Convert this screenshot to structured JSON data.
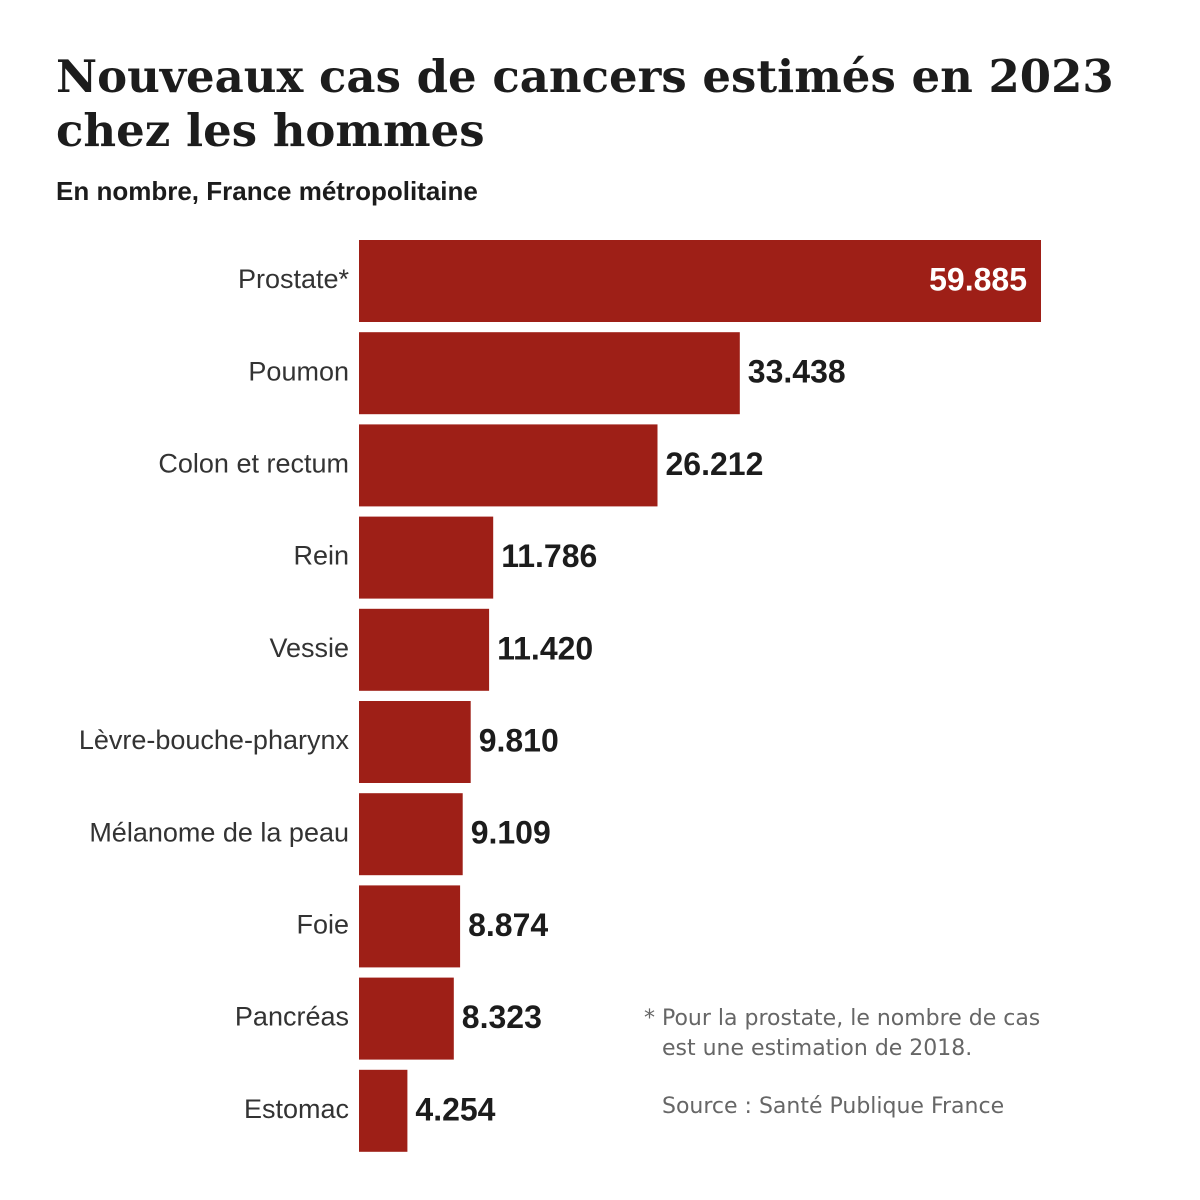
{
  "title_line1": "Nouveaux cas de cancers estimés en 2023",
  "title_line2": "chez les hommes",
  "subtitle": "En nombre, France métropolitaine",
  "note_line1": "* Pour la prostate, le nombre de cas",
  "note_line2": "est une estimation de 2018.",
  "source": "Source : Santé Publique France",
  "colors": {
    "bar": "#9e1f17",
    "value_text": "#1c1c1c",
    "value_text_inside": "#ffffff"
  },
  "chart_data": {
    "type": "bar",
    "orientation": "horizontal",
    "title": "Nouveaux cas de cancers estimés en 2023 chez les hommes",
    "subtitle": "En nombre, France métropolitaine",
    "categories": [
      "Prostate*",
      "Poumon",
      "Colon et rectum",
      "Rein",
      "Vessie",
      "Lèvre-bouche-pharynx",
      "Mélanome de la peau",
      "Foie",
      "Pancréas",
      "Estomac"
    ],
    "values": [
      59885,
      33438,
      26212,
      11786,
      11420,
      9810,
      9109,
      8874,
      8323,
      4254
    ],
    "value_labels": [
      "59.885",
      "33.438",
      "26.212",
      "11.786",
      "11.420",
      "9.810",
      "9.109",
      "8.874",
      "8.323",
      "4.254"
    ],
    "xlim": [
      0,
      59885
    ],
    "grid": false,
    "legend": "none"
  }
}
